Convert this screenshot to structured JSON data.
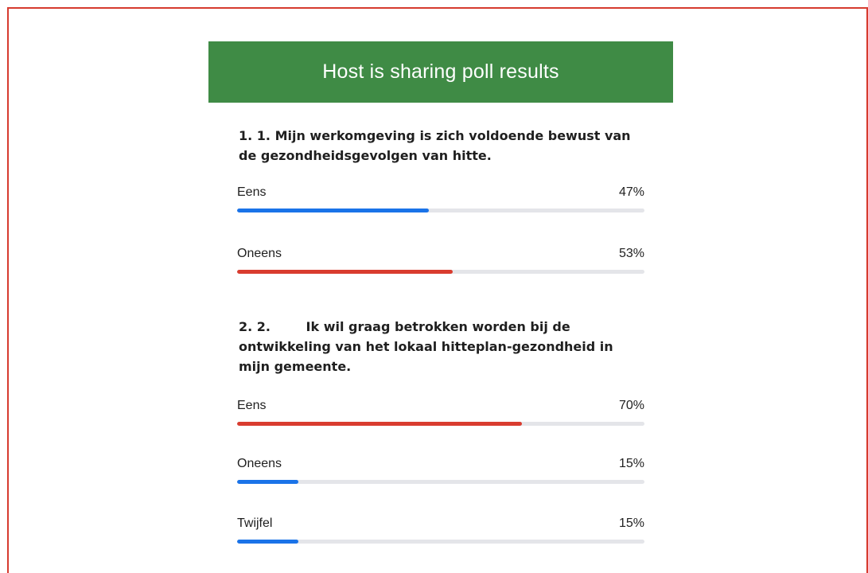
{
  "banner": {
    "title": "Host is sharing poll results",
    "color": "#3f8b45"
  },
  "questions": [
    {
      "text": "1. 1. Mijn werkomgeving is zich voldoende bewust van de gezondheidsgevolgen van hitte.",
      "options": [
        {
          "label": "Eens",
          "percent_text": "47%",
          "percent": 47,
          "bar_color": "#1a73e8"
        },
        {
          "label": "Oneens",
          "percent_text": "53%",
          "percent": 53,
          "bar_color": "#d93c2f"
        }
      ]
    },
    {
      "text": "2. 2.        Ik wil graag betrokken worden bij de ontwikkeling van het lokaal hitteplan-gezondheid in mijn gemeente.",
      "options": [
        {
          "label": "Eens",
          "percent_text": "70%",
          "percent": 70,
          "bar_color": "#d93c2f"
        },
        {
          "label": "Oneens",
          "percent_text": "15%",
          "percent": 15,
          "bar_color": "#1a73e8"
        },
        {
          "label": "Twijfel",
          "percent_text": "15%",
          "percent": 15,
          "bar_color": "#1a73e8"
        }
      ]
    }
  ]
}
